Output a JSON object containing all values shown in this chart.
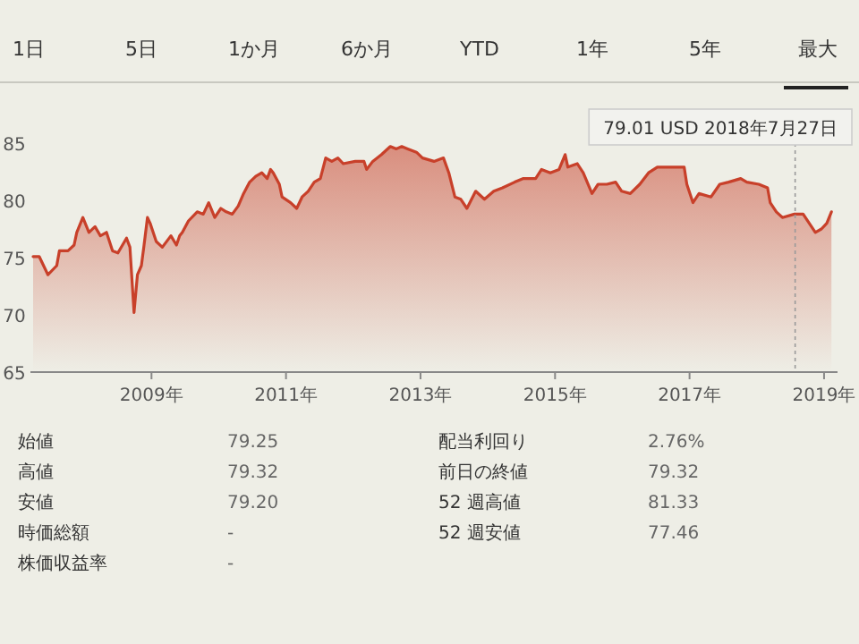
{
  "chart_data": [
    {
      "type": "other",
      "annotations": [
        "1日",
        "5日",
        "1か月",
        "6か月",
        "YTD",
        "1年",
        "5年",
        "最大"
      ]
    },
    {
      "type": "area",
      "x": [
        2007.24,
        2007.33,
        2007.46,
        2007.59,
        2007.63,
        2007.76,
        2007.85,
        2007.89,
        2007.98,
        2008.07,
        2008.16,
        2008.24,
        2008.33,
        2008.42,
        2008.5,
        2008.63,
        2008.68,
        2008.74,
        2008.79,
        2008.85,
        2008.89,
        2008.94,
        2008.98,
        2009.07,
        2009.16,
        2009.29,
        2009.37,
        2009.42,
        2009.46,
        2009.55,
        2009.68,
        2009.77,
        2009.85,
        2009.94,
        2010.03,
        2010.11,
        2010.2,
        2010.29,
        2010.37,
        2010.46,
        2010.55,
        2010.64,
        2010.72,
        2010.77,
        2010.81,
        2010.9,
        2010.94,
        2011.07,
        2011.16,
        2011.24,
        2011.33,
        2011.42,
        2011.51,
        2011.59,
        2011.68,
        2011.77,
        2011.85,
        2012.03,
        2012.16,
        2012.2,
        2012.29,
        2012.42,
        2012.55,
        2012.64,
        2012.72,
        2012.81,
        2012.94,
        2013.03,
        2013.2,
        2013.34,
        2013.42,
        2013.51,
        2013.6,
        2013.69,
        2013.82,
        2013.95,
        2014.09,
        2014.22,
        2014.4,
        2014.53,
        2014.71,
        2014.8,
        2014.93,
        2015.06,
        2015.15,
        2015.19,
        2015.33,
        2015.42,
        2015.55,
        2015.64,
        2015.77,
        2015.9,
        2015.99,
        2016.12,
        2016.26,
        2016.39,
        2016.52,
        2016.61,
        2016.79,
        2016.92,
        2016.96,
        2017.05,
        2017.14,
        2017.32,
        2017.45,
        2017.58,
        2017.76,
        2017.85,
        2018.03,
        2018.16,
        2018.2,
        2018.29,
        2018.38,
        2018.56,
        2018.69,
        2018.78,
        2018.87,
        2018.96,
        2019.04,
        2019.11
      ],
      "series": [
        {
          "color": "#c8402a",
          "values": [
            75.1,
            75.1,
            73.5,
            74.3,
            75.6,
            75.6,
            76.1,
            77.2,
            78.5,
            77.2,
            77.7,
            76.9,
            77.2,
            75.6,
            75.4,
            76.7,
            75.9,
            70.2,
            73.5,
            74.3,
            76.1,
            78.5,
            78.0,
            76.4,
            75.9,
            76.9,
            76.1,
            76.9,
            77.2,
            78.2,
            79.0,
            78.8,
            79.8,
            78.5,
            79.3,
            79.0,
            78.8,
            79.5,
            80.6,
            81.6,
            82.1,
            82.4,
            81.9,
            82.7,
            82.4,
            81.4,
            80.3,
            79.8,
            79.3,
            80.3,
            80.8,
            81.6,
            81.9,
            83.7,
            83.4,
            83.7,
            83.2,
            83.4,
            83.4,
            82.7,
            83.4,
            84.0,
            84.7,
            84.5,
            84.7,
            84.5,
            84.2,
            83.7,
            83.4,
            83.7,
            82.4,
            80.3,
            80.1,
            79.3,
            80.8,
            80.1,
            80.8,
            81.1,
            81.6,
            81.9,
            81.9,
            82.7,
            82.4,
            82.7,
            84.0,
            82.9,
            83.2,
            82.4,
            80.6,
            81.4,
            81.4,
            81.6,
            80.8,
            80.6,
            81.4,
            82.4,
            82.9,
            82.9,
            82.9,
            82.9,
            81.4,
            79.8,
            80.6,
            80.3,
            81.4,
            81.6,
            81.9,
            81.6,
            81.4,
            81.1,
            79.8,
            79.0,
            78.5,
            78.8,
            78.8,
            78.0,
            77.2,
            77.5,
            78.0,
            79.0
          ]
        }
      ],
      "xlim": [
        2007.2,
        2019.2
      ],
      "ylim": [
        65,
        85
      ],
      "ref_lines": [
        {
          "axis": "x",
          "value": 2018.57,
          "line_style": "dotted",
          "color": "#999999"
        }
      ],
      "xticks": [
        {
          "value": 2009,
          "label": "2009年"
        },
        {
          "value": 2011,
          "label": "2011年"
        },
        {
          "value": 2013,
          "label": "2013年"
        },
        {
          "value": 2015,
          "label": "2015年"
        },
        {
          "value": 2017,
          "label": "2017年"
        },
        {
          "value": 2019,
          "label": "2019年"
        }
      ],
      "yticks": [
        65,
        70,
        75,
        80,
        85
      ],
      "annotations": [
        "79.01 USD  2018年7月27日"
      ]
    },
    {
      "type": "other",
      "annotations": [
        "始値",
        "79.25",
        "配当利回り",
        "2.76%",
        "高値",
        "79.32",
        "前日の終値",
        "79.32",
        "安値",
        "79.20",
        "52 週高値",
        "81.33",
        "時価総額",
        "-",
        "52 週安値",
        "77.46",
        "株価収益率",
        "-"
      ]
    }
  ]
}
